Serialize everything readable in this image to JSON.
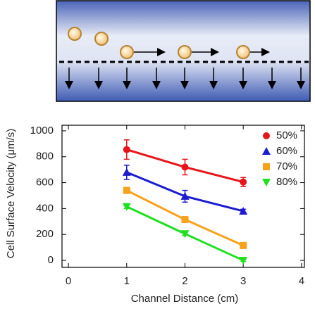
{
  "chart_data": {
    "type": "line",
    "x_label": "Channel Distance (cm)",
    "y_label": "Cell Surface Velocity (μm/s)",
    "x": [
      1,
      2,
      3
    ],
    "series": [
      {
        "name": "50%",
        "color": "#e8141b",
        "marker": "circle",
        "values": [
          855,
          720,
          605
        ],
        "errors": [
          75,
          60,
          35
        ]
      },
      {
        "name": "60%",
        "color": "#1c1ccf",
        "marker": "triangle-up",
        "values": [
          680,
          495,
          380
        ],
        "errors": [
          55,
          45,
          15
        ]
      },
      {
        "name": "70%",
        "color": "#f7a21b",
        "marker": "square",
        "values": [
          540,
          315,
          115
        ],
        "errors": [
          15,
          15,
          15
        ]
      },
      {
        "name": "80%",
        "color": "#1fe020",
        "marker": "triangle-down",
        "values": [
          415,
          205,
          0
        ],
        "errors": [
          15,
          12,
          8
        ]
      }
    ],
    "xlim": [
      -0.11,
      4.05
    ],
    "ylim": [
      -54,
      1043
    ],
    "xticks": [
      0,
      1,
      2,
      3,
      4
    ],
    "yticks": [
      0,
      200,
      400,
      600,
      800,
      1000
    ],
    "legend": "top-right"
  }
}
